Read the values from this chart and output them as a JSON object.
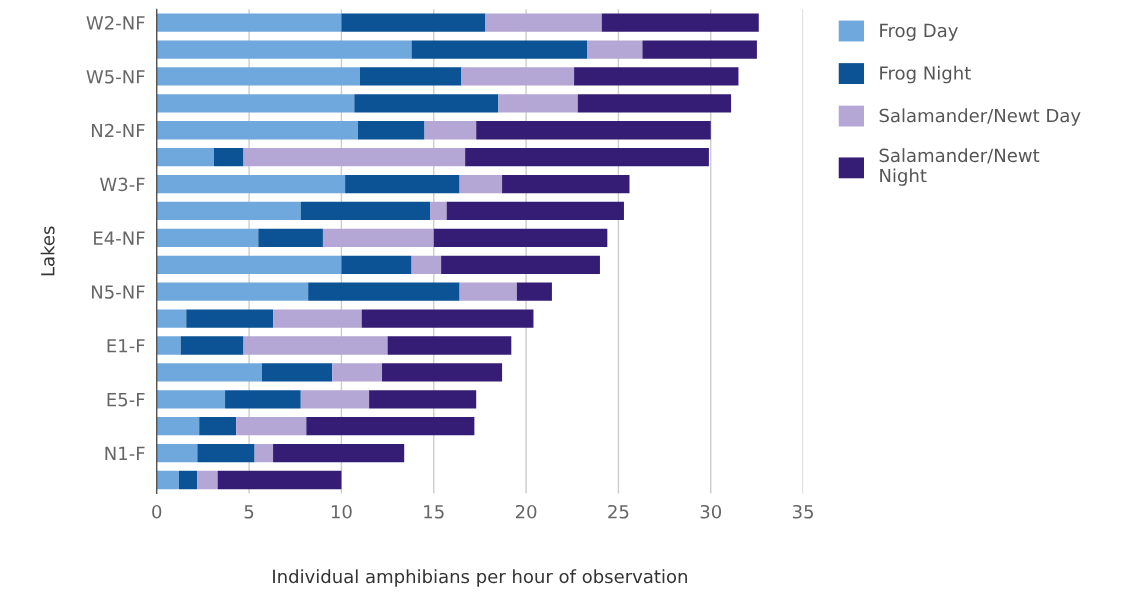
{
  "chart_data": {
    "type": "bar",
    "orientation": "horizontal",
    "stacked": true,
    "xlabel": "Individual amphibians per hour of observation",
    "ylabel": "Lakes",
    "categories": [
      "W2-NF",
      null,
      "W5-NF",
      null,
      "N2-NF",
      null,
      "W3-F",
      null,
      "E4-NF",
      null,
      "N5-NF",
      null,
      "E1-F",
      null,
      "E5-F",
      null,
      "N1-F",
      null
    ],
    "series": [
      {
        "name": "Frog Day",
        "color": "#6fa8dc",
        "values": [
          10.0,
          13.8,
          11.0,
          10.7,
          10.9,
          3.1,
          10.2,
          7.8,
          5.5,
          10.0,
          8.2,
          1.6,
          1.3,
          5.7,
          3.7,
          2.3,
          2.2,
          1.2
        ]
      },
      {
        "name": "Frog Night",
        "color": "#0b5394",
        "values": [
          7.8,
          9.5,
          5.5,
          7.8,
          3.6,
          1.6,
          6.2,
          7.0,
          3.5,
          3.8,
          8.2,
          4.7,
          3.4,
          3.8,
          4.1,
          2.0,
          3.1,
          1.0
        ]
      },
      {
        "name": "Salamander/Newt Day",
        "color": "#b4a7d6",
        "values": [
          6.3,
          3.0,
          6.1,
          4.3,
          2.8,
          12.0,
          2.3,
          0.9,
          6.0,
          1.6,
          3.1,
          4.8,
          7.8,
          2.7,
          3.7,
          3.8,
          1.0,
          1.1
        ]
      },
      {
        "name": "Salamander/Newt\nNight",
        "color": "#351c75",
        "values": [
          8.5,
          6.2,
          8.9,
          8.3,
          12.7,
          13.2,
          6.9,
          9.6,
          9.4,
          8.6,
          1.9,
          9.3,
          6.7,
          6.5,
          5.8,
          9.1,
          7.1,
          6.7
        ]
      }
    ],
    "xlim": [
      0,
      35
    ],
    "xticks": [
      0,
      5,
      10,
      15,
      20,
      25,
      30,
      35
    ],
    "grid": "x",
    "legend": "top right"
  }
}
